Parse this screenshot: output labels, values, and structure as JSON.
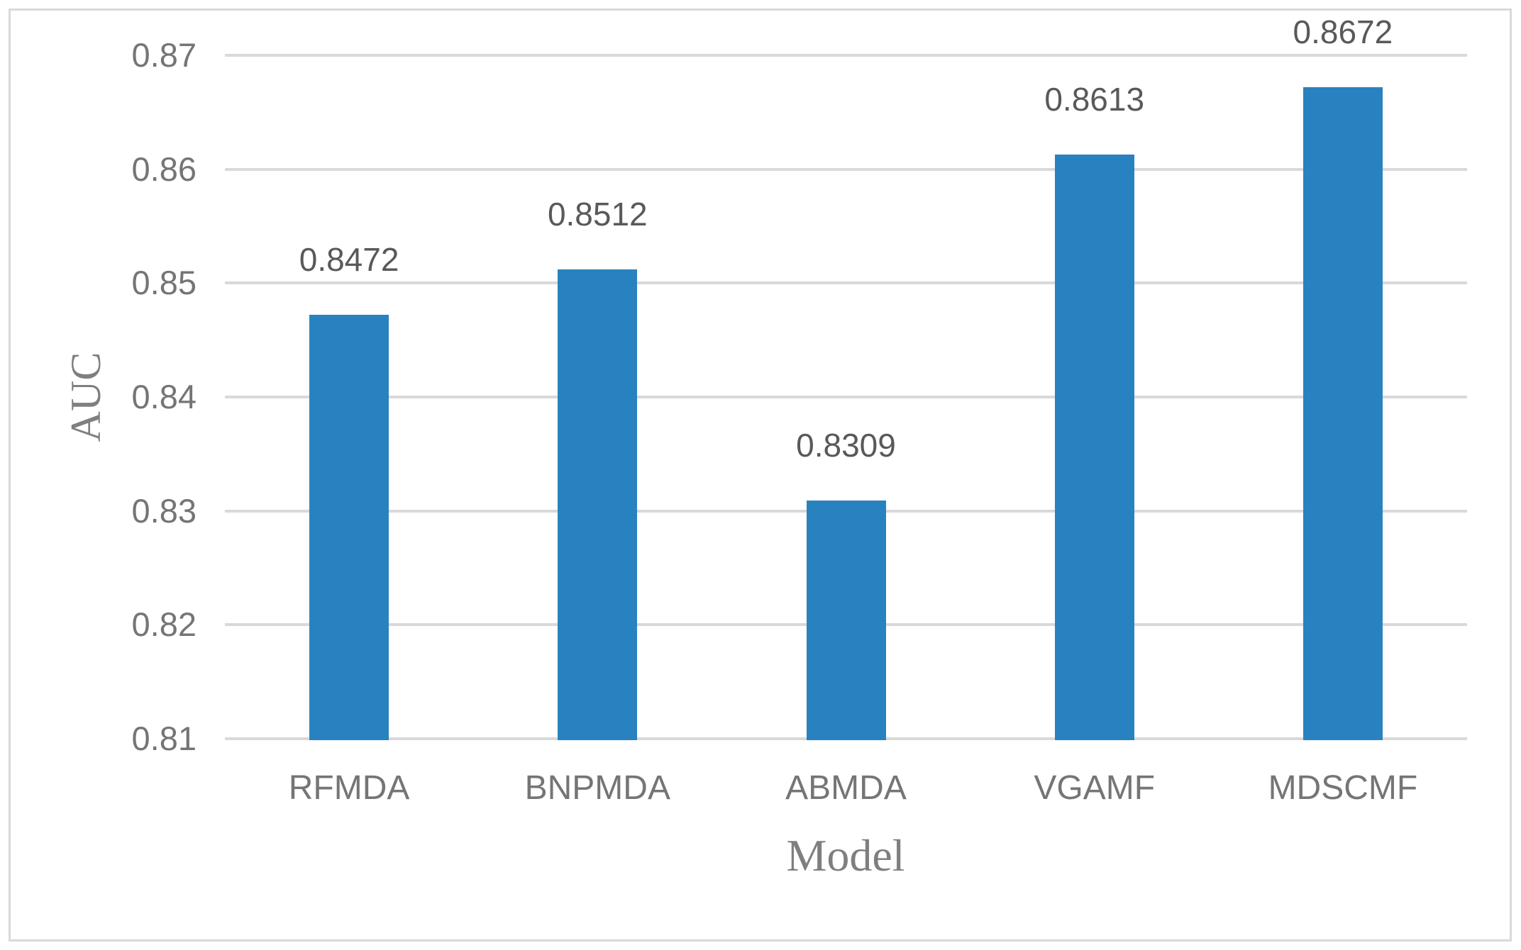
{
  "chart_data": {
    "type": "bar",
    "title": "",
    "categories": [
      "RFMDA",
      "BNPMDA",
      "ABMDA",
      "VGAMF",
      "MDSCMF"
    ],
    "values": [
      0.8472,
      0.8512,
      0.8309,
      0.8613,
      0.8672
    ],
    "data_labels": [
      "0.8472",
      "0.8512",
      "0.8309",
      "0.8613",
      "0.8672"
    ],
    "xlabel": "Model",
    "ylabel": "AUC",
    "ylim": [
      0.81,
      0.87
    ],
    "ytick_interval": 0.01,
    "yticks": [
      0.87,
      0.86,
      0.85,
      0.84,
      0.83,
      0.82,
      0.81
    ],
    "ytick_labels": [
      "0.87",
      "0.86",
      "0.85",
      "0.84",
      "0.83",
      "0.82",
      "0.81"
    ],
    "grid": true,
    "legend": "none",
    "colors": {
      "bar": "#2982C0",
      "gridline": "#D9D9D9",
      "figure_border": "#D9D9D9",
      "tick_label": "#757575",
      "category_label": "#757575",
      "data_label": "#595959",
      "axis_title": "#7F7F7F",
      "background": "#FFFFFF"
    }
  }
}
